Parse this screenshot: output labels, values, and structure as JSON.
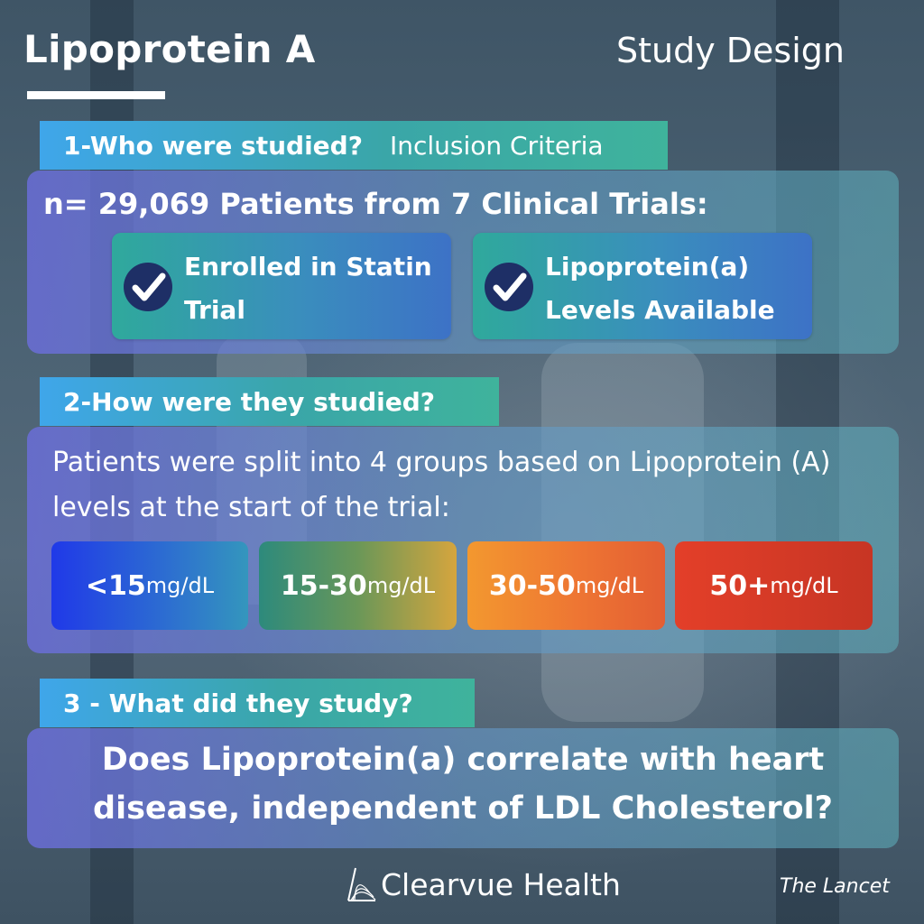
{
  "header": {
    "title": "Lipoprotein A",
    "subtitle": "Study Design"
  },
  "section1": {
    "heading": "1-Who were studied?",
    "subheading": "Inclusion Criteria",
    "summary": "n= 29,069 Patients from 7 Clinical Trials:",
    "criteria": [
      {
        "line1": "Enrolled in Statin",
        "line2": "Trial"
      },
      {
        "line1": "Lipoprotein(a)",
        "line2": "Levels Available"
      }
    ]
  },
  "section2": {
    "heading": "2-How were they studied?",
    "description": "Patients were split into 4 groups based on Lipoprotein (A) levels at the start of the trial:",
    "groups": [
      {
        "range": "<15",
        "unit": " mg/dL",
        "color": "#2039e8"
      },
      {
        "range": "15-30",
        "unit": " mg/dL",
        "color": "#6a9758"
      },
      {
        "range": "30-50",
        "unit": "mg/dL",
        "color": "#f3982f"
      },
      {
        "range": "50+",
        "unit": " mg/dL",
        "color": "#d33a26"
      }
    ]
  },
  "section3": {
    "heading": "3 - What did they study?",
    "question": "Does Lipoprotein(a) correlate with heart disease, independent of LDL Cholesterol?"
  },
  "footer": {
    "brand": "Clearvue Health",
    "source": "The Lancet"
  },
  "icons": {
    "check": "check-circle-icon",
    "logo": "clearvue-logo-icon"
  },
  "colors": {
    "tab_gradient_start": "#3fa6ea",
    "tab_gradient_end": "#3fb39c",
    "check_circle": "#1e2f66"
  }
}
